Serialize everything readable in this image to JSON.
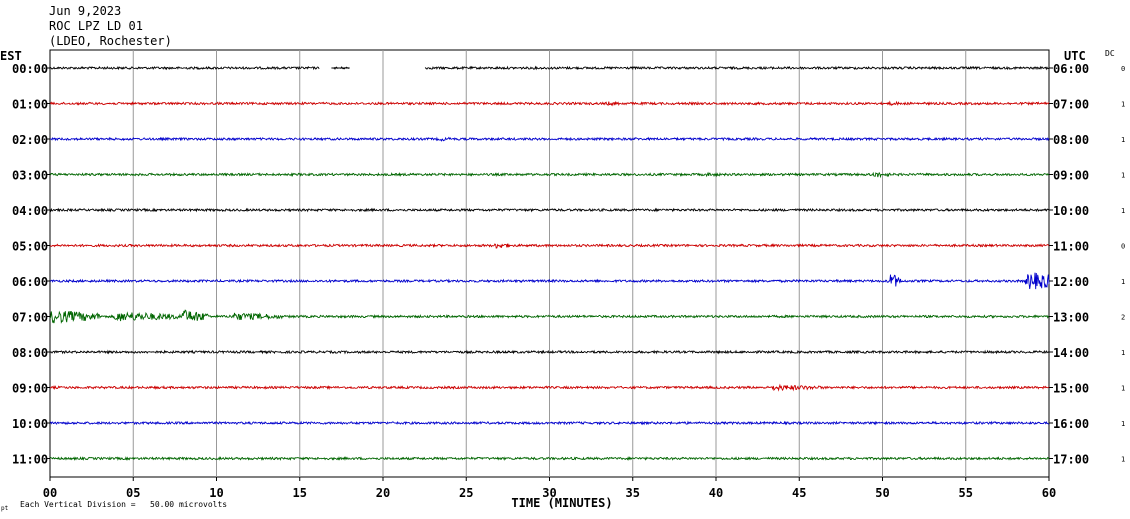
{
  "header": {
    "date": "Jun 9,2023",
    "station": "ROC LPZ LD 01",
    "network": "(LDEO, Rochester)"
  },
  "left_axis_label": "EST",
  "right_axis_label": "UTC",
  "dc_label": "DC",
  "xlabel": "TIME (MINUTES)",
  "footnote": "Each Vertical Division =   50.00 microvolts",
  "footnote_mark": "pt",
  "chart_data": {
    "type": "line",
    "xlim": [
      0,
      60
    ],
    "x_ticks": [
      "00",
      "05",
      "10",
      "15",
      "20",
      "25",
      "30",
      "35",
      "40",
      "45",
      "50",
      "55",
      "60"
    ],
    "grid": "vertical",
    "rows": [
      {
        "est": "00:00",
        "utc": "06:00",
        "dc": "0",
        "color": "#000000",
        "gaps": [
          [
            16.2,
            17.0
          ],
          [
            18.0,
            22.5
          ]
        ],
        "dashes": [
          [
            16.9,
            17.2
          ],
          [
            17.0,
            18.0
          ]
        ],
        "events": []
      },
      {
        "est": "01:00",
        "utc": "07:00",
        "dc": "1",
        "color": "#cc0000",
        "gaps": [],
        "dashes": [],
        "events": [
          {
            "t": 33.5,
            "amp": 2,
            "dur": 1.5
          },
          {
            "t": 50.5,
            "amp": 2,
            "dur": 0.8
          }
        ]
      },
      {
        "est": "02:00",
        "utc": "08:00",
        "dc": "1",
        "color": "#0000cc",
        "gaps": [],
        "dashes": [],
        "events": [
          {
            "t": 23.5,
            "amp": 2,
            "dur": 1
          },
          {
            "t": 35,
            "amp": 1.5,
            "dur": 1
          }
        ]
      },
      {
        "est": "03:00",
        "utc": "09:00",
        "dc": "1",
        "color": "#006600",
        "gaps": [],
        "dashes": [],
        "events": [
          {
            "t": 39.5,
            "amp": 2,
            "dur": 1
          },
          {
            "t": 49.5,
            "amp": 3,
            "dur": 1
          }
        ]
      },
      {
        "est": "04:00",
        "utc": "10:00",
        "dc": "1",
        "color": "#000000",
        "gaps": [],
        "dashes": [],
        "events": []
      },
      {
        "est": "05:00",
        "utc": "11:00",
        "dc": "0",
        "color": "#cc0000",
        "gaps": [],
        "dashes": [],
        "events": [
          {
            "t": 26.8,
            "amp": 3,
            "dur": 1
          }
        ]
      },
      {
        "est": "06:00",
        "utc": "12:00",
        "dc": "1",
        "color": "#0000cc",
        "gaps": [],
        "dashes": [],
        "events": [
          {
            "t": 50.5,
            "amp": 8,
            "dur": 0.6
          },
          {
            "t": 58.8,
            "amp": 9,
            "dur": 2.4
          }
        ]
      },
      {
        "est": "07:00",
        "utc": "13:00",
        "dc": "2",
        "color": "#006600",
        "gaps": [],
        "dashes": [],
        "events": [
          {
            "t": 0,
            "amp": 7,
            "dur": 3
          },
          {
            "t": 4,
            "amp": 5,
            "dur": 4
          },
          {
            "t": 8,
            "amp": 7,
            "dur": 1.5
          },
          {
            "t": 11,
            "amp": 4,
            "dur": 3
          }
        ]
      },
      {
        "est": "08:00",
        "utc": "14:00",
        "dc": "1",
        "color": "#000000",
        "gaps": [],
        "dashes": [],
        "events": []
      },
      {
        "est": "09:00",
        "utc": "15:00",
        "dc": "1",
        "color": "#cc0000",
        "gaps": [],
        "dashes": [],
        "events": [
          {
            "t": 43.5,
            "amp": 3,
            "dur": 3
          }
        ]
      },
      {
        "est": "10:00",
        "utc": "16:00",
        "dc": "1",
        "color": "#0000cc",
        "gaps": [],
        "dashes": [],
        "events": [
          {
            "t": 24.5,
            "amp": 1.5,
            "dur": 1
          },
          {
            "t": 38,
            "amp": 1.5,
            "dur": 1
          }
        ]
      },
      {
        "est": "11:00",
        "utc": "17:00",
        "dc": "1",
        "color": "#006600",
        "gaps": [],
        "dashes": [],
        "events": []
      }
    ]
  }
}
